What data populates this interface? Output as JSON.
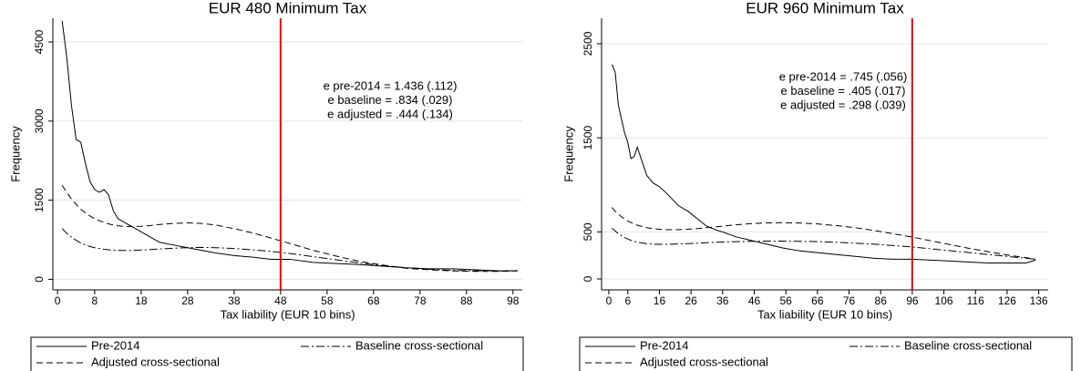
{
  "chart_data": [
    {
      "type": "line",
      "title": "EUR 480 Minimum Tax",
      "x_label": "Tax liability (EUR 10 bins)",
      "y_label": "Frequency",
      "xlim": [
        -1,
        100
      ],
      "ylim": [
        -200,
        4950
      ],
      "xticks": [
        0,
        8,
        18,
        28,
        38,
        48,
        58,
        68,
        78,
        88,
        98
      ],
      "yticks": [
        0,
        1500,
        3000,
        4500
      ],
      "grid": true,
      "vline": 48,
      "vline_color": "#e8000b",
      "annotations": [
        "e pre-2014 = 1.436 (.112)",
        "e baseline = .834 (.029)",
        "e adjusted = .444 (.134)"
      ],
      "x": [
        1,
        2,
        3,
        4,
        5,
        6,
        7,
        8,
        9,
        10,
        11,
        12,
        13,
        14,
        16,
        18,
        20,
        22,
        25,
        28,
        31,
        34,
        38,
        42,
        46,
        50,
        55,
        60,
        65,
        70,
        75,
        80,
        85,
        90,
        95,
        99
      ],
      "series": [
        {
          "name": "Pre-2014",
          "color": "#000000",
          "dash": "solid",
          "values": [
            4900,
            4200,
            3300,
            2650,
            2600,
            2200,
            1850,
            1700,
            1650,
            1700,
            1600,
            1300,
            1150,
            1100,
            1000,
            900,
            800,
            700,
            650,
            600,
            550,
            500,
            450,
            420,
            380,
            380,
            320,
            300,
            280,
            250,
            220,
            200,
            200,
            180,
            160,
            160
          ]
        },
        {
          "name": "Baseline cross-sectional",
          "color": "#000000",
          "dash": "dashdot",
          "values": [
            960,
            870,
            800,
            740,
            690,
            650,
            620,
            600,
            585,
            570,
            560,
            555,
            550,
            548,
            548,
            555,
            565,
            575,
            590,
            600,
            605,
            600,
            585,
            560,
            530,
            490,
            430,
            370,
            310,
            260,
            220,
            190,
            170,
            160,
            160,
            165
          ]
        },
        {
          "name": "Adjusted cross-sectional",
          "color": "#000000",
          "dash": "dash",
          "values": [
            1780,
            1650,
            1520,
            1420,
            1330,
            1260,
            1200,
            1150,
            1110,
            1080,
            1050,
            1030,
            1015,
            1005,
            1000,
            1005,
            1020,
            1040,
            1060,
            1070,
            1060,
            1030,
            960,
            880,
            780,
            680,
            550,
            440,
            340,
            270,
            210,
            180,
            160,
            150,
            150,
            160
          ]
        }
      ]
    },
    {
      "type": "line",
      "title": "EUR 960 Minimum Tax",
      "x_label": "Tax liability (EUR 10 bins)",
      "y_label": "Frequency",
      "xlim": [
        -2.3,
        139
      ],
      "ylim": [
        -116,
        2771
      ],
      "xticks": [
        0,
        6,
        16,
        26,
        36,
        46,
        56,
        66,
        76,
        86,
        96,
        106,
        116,
        126,
        136
      ],
      "yticks": [
        0,
        500,
        1500,
        2500
      ],
      "grid": true,
      "vline": 96,
      "vline_color": "#e8000b",
      "annotations": [
        "e pre-2014 = .745 (.056)",
        "e baseline = .405 (.017)",
        "e adjusted = .298 (.039)"
      ],
      "x": [
        1,
        2,
        3,
        4,
        5,
        6,
        7,
        8,
        9,
        10,
        11,
        12,
        14,
        16,
        18,
        20,
        22,
        25,
        28,
        31,
        34,
        36,
        40,
        45,
        50,
        55,
        60,
        66,
        72,
        78,
        84,
        90,
        96,
        102,
        108,
        114,
        120,
        126,
        132,
        135
      ],
      "series": [
        {
          "name": "Pre-2014",
          "color": "#000000",
          "dash": "solid",
          "values": [
            2280,
            2200,
            1850,
            1700,
            1550,
            1450,
            1280,
            1300,
            1400,
            1300,
            1200,
            1100,
            1020,
            980,
            920,
            850,
            780,
            720,
            640,
            560,
            520,
            500,
            450,
            410,
            370,
            330,
            300,
            280,
            260,
            240,
            220,
            210,
            210,
            200,
            190,
            180,
            170,
            170,
            170,
            200
          ]
        },
        {
          "name": "Baseline cross-sectional",
          "color": "#000000",
          "dash": "dashdot",
          "values": [
            540,
            510,
            480,
            460,
            440,
            425,
            410,
            400,
            392,
            385,
            380,
            375,
            370,
            368,
            368,
            370,
            372,
            376,
            380,
            385,
            390,
            392,
            396,
            400,
            402,
            402,
            400,
            397,
            390,
            380,
            370,
            355,
            340,
            320,
            300,
            280,
            260,
            240,
            220,
            210
          ]
        },
        {
          "name": "Adjusted cross-sectional",
          "color": "#000000",
          "dash": "dash",
          "values": [
            760,
            720,
            690,
            660,
            635,
            615,
            600,
            585,
            572,
            562,
            553,
            545,
            535,
            528,
            524,
            523,
            524,
            528,
            536,
            545,
            555,
            562,
            575,
            588,
            596,
            598,
            595,
            585,
            567,
            545,
            515,
            480,
            445,
            405,
            365,
            325,
            290,
            255,
            225,
            210
          ]
        }
      ]
    }
  ]
}
